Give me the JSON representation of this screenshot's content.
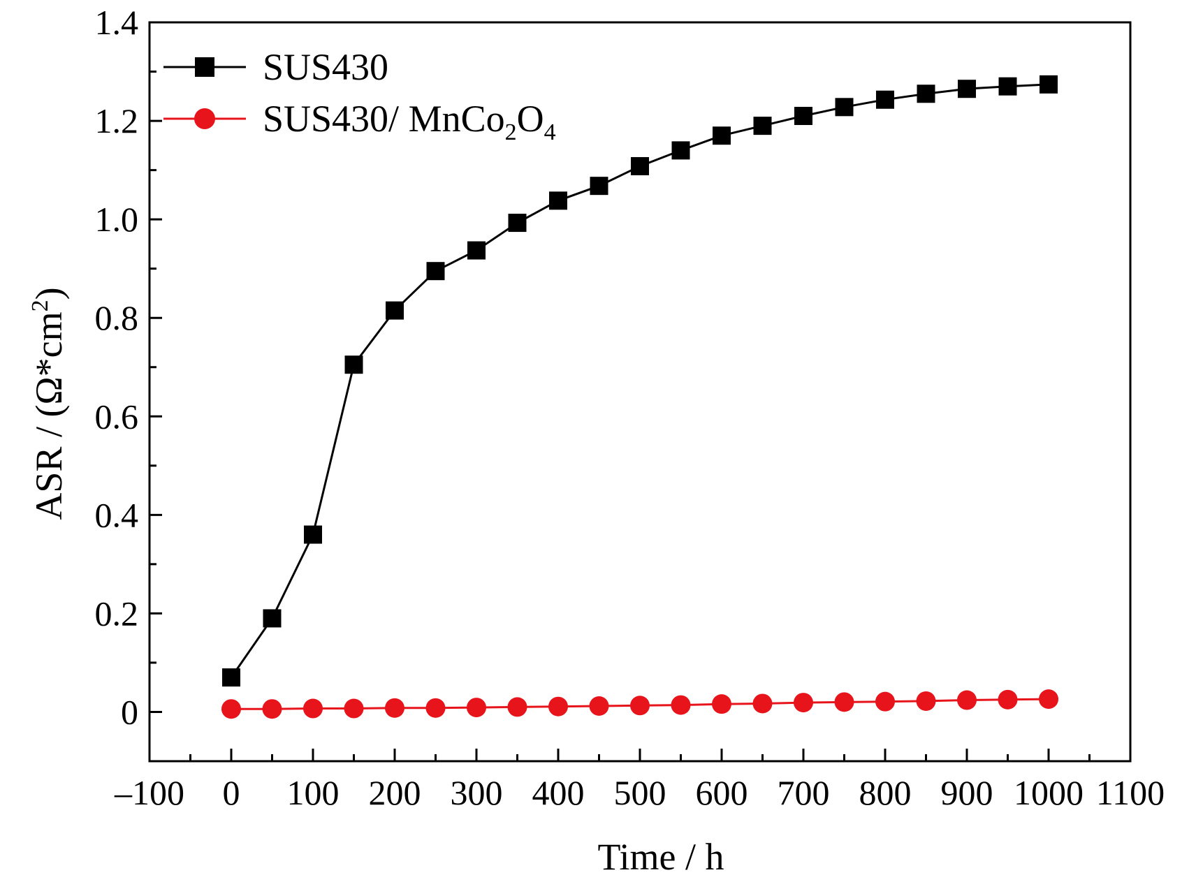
{
  "chart_data": {
    "type": "line",
    "xlabel": "Time / h",
    "ylabel_main": "ASR / (Ω*cm",
    "ylabel_sup": "2",
    "ylabel_close": ")",
    "xlim": [
      -100,
      1100
    ],
    "ylim": [
      -0.1,
      1.4
    ],
    "xticks": [
      -100,
      0,
      100,
      200,
      300,
      400,
      500,
      600,
      700,
      800,
      900,
      1000,
      1100
    ],
    "xtick_labels": [
      "–100",
      "0",
      "100",
      "200",
      "300",
      "400",
      "500",
      "600",
      "700",
      "800",
      "900",
      "1000",
      "1100"
    ],
    "yticks": [
      0,
      0.2,
      0.4,
      0.6,
      0.8,
      1.0,
      1.2,
      1.4
    ],
    "ytick_labels": [
      "0",
      "0.2",
      "0.4",
      "0.6",
      "0.8",
      "1.0",
      "1.2",
      "1.4"
    ],
    "grid": false,
    "legend_position": "top-left",
    "series": [
      {
        "name": "SUS430",
        "legend_main": "SUS430",
        "color": "#000000",
        "marker": "square",
        "x": [
          0,
          50,
          100,
          150,
          200,
          250,
          300,
          350,
          400,
          450,
          500,
          550,
          600,
          650,
          700,
          750,
          800,
          850,
          900,
          950,
          1000
        ],
        "y": [
          0.07,
          0.19,
          0.36,
          0.705,
          0.815,
          0.895,
          0.937,
          0.993,
          1.038,
          1.068,
          1.108,
          1.14,
          1.17,
          1.19,
          1.21,
          1.228,
          1.243,
          1.255,
          1.265,
          1.27,
          1.274
        ]
      },
      {
        "name": "SUS430/ MnCo2O4",
        "legend_main": "SUS430/ MnCo",
        "legend_sub1": "2",
        "legend_mid": "O",
        "legend_sub2": "4",
        "color": "#e8141b",
        "marker": "circle",
        "x": [
          0,
          50,
          100,
          150,
          200,
          250,
          300,
          350,
          400,
          450,
          500,
          550,
          600,
          650,
          700,
          750,
          800,
          850,
          900,
          950,
          1000
        ],
        "y": [
          0.006,
          0.006,
          0.007,
          0.007,
          0.008,
          0.008,
          0.009,
          0.01,
          0.011,
          0.012,
          0.013,
          0.014,
          0.016,
          0.017,
          0.019,
          0.02,
          0.021,
          0.022,
          0.024,
          0.025,
          0.026
        ]
      }
    ]
  }
}
